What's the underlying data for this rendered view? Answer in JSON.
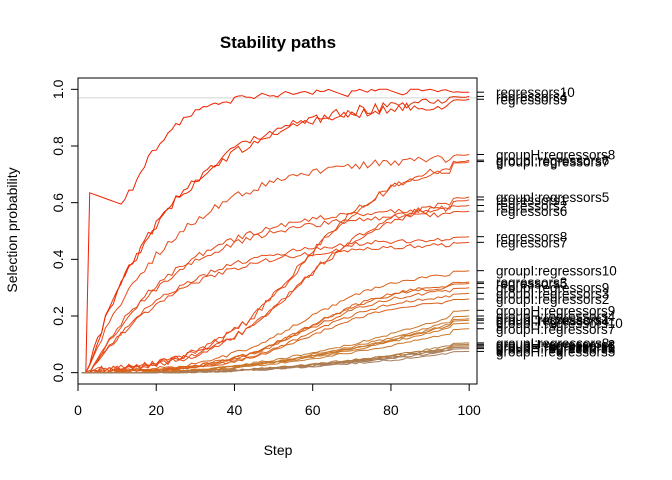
{
  "chart_data": {
    "type": "line",
    "title": "Stability paths",
    "xlabel": "Step",
    "ylabel": "Selection probability",
    "xlim": [
      0,
      102
    ],
    "ylim": [
      -0.04,
      1.04
    ],
    "xticks": [
      0,
      20,
      40,
      60,
      80,
      100
    ],
    "yticks": [
      0.0,
      0.2,
      0.4,
      0.6,
      0.8,
      1.0
    ],
    "threshold": 0.97,
    "grid": false,
    "series": [
      {
        "name": "regressors10",
        "color": "#f01f00",
        "end": 0.99,
        "start": 2,
        "shape": "fast"
      },
      {
        "name": "regressors4",
        "color": "#ea2a00",
        "end": 0.975,
        "start": 2,
        "shape": "medium"
      },
      {
        "name": "regressors9",
        "color": "#ea2a00",
        "end": 0.965,
        "start": 2,
        "shape": "medium"
      },
      {
        "name": "groupH:regressors8",
        "color": "#e64a18",
        "end": 0.77,
        "start": 2,
        "shape": "medium"
      },
      {
        "name": "groupI:regressors6",
        "color": "#e64a18",
        "end": 0.75,
        "start": 4,
        "shape": "sig"
      },
      {
        "name": "groupI:regressors7",
        "color": "#e64a18",
        "end": 0.745,
        "start": 4,
        "shape": "sig"
      },
      {
        "name": "groupI:regressors5",
        "color": "#e64a18",
        "end": 0.62,
        "start": 3,
        "shape": "sig"
      },
      {
        "name": "regressors1",
        "color": "#e64a18",
        "end": 0.61,
        "start": 3,
        "shape": "sig"
      },
      {
        "name": "regressors2",
        "color": "#e64a18",
        "end": 0.59,
        "start": 3,
        "shape": "medium"
      },
      {
        "name": "regressors6",
        "color": "#e64a18",
        "end": 0.57,
        "start": 3,
        "shape": "medium"
      },
      {
        "name": "regressors8",
        "color": "#e64a18",
        "end": 0.48,
        "start": 3,
        "shape": "medium"
      },
      {
        "name": "regressors7",
        "color": "#e64a18",
        "end": 0.46,
        "start": 3,
        "shape": "medium"
      },
      {
        "name": "groupI:regressors10",
        "color": "#d9611a",
        "end": 0.36,
        "start": 5,
        "shape": "sig"
      },
      {
        "name": "regressors3",
        "color": "#d9611a",
        "end": 0.32,
        "start": 8,
        "shape": "sig"
      },
      {
        "name": "regressors5",
        "color": "#d9611a",
        "end": 0.315,
        "start": 8,
        "shape": "sig"
      },
      {
        "name": "groupI:regressors9",
        "color": "#d9611a",
        "end": 0.3,
        "start": 8,
        "shape": "sig"
      },
      {
        "name": "groupI:regressors3",
        "color": "#d9611a",
        "end": 0.28,
        "start": 10,
        "shape": "sig"
      },
      {
        "name": "groupI:regressors2",
        "color": "#d9611a",
        "end": 0.26,
        "start": 10,
        "shape": "sig"
      },
      {
        "name": "groupH:regressors9",
        "color": "#c8762a",
        "end": 0.22,
        "start": 15,
        "shape": "late"
      },
      {
        "name": "groupH:regressors4",
        "color": "#c8762a",
        "end": 0.2,
        "start": 15,
        "shape": "late"
      },
      {
        "name": "groupI:regressors1",
        "color": "#c8762a",
        "end": 0.19,
        "start": 15,
        "shape": "late"
      },
      {
        "name": "groupI:regressors4",
        "color": "#c8762a",
        "end": 0.185,
        "start": 15,
        "shape": "late"
      },
      {
        "name": "groupH:regressors10",
        "color": "#c8762a",
        "end": 0.175,
        "start": 15,
        "shape": "late"
      },
      {
        "name": "groupH:regressors7",
        "color": "#c8762a",
        "end": 0.155,
        "start": 15,
        "shape": "late"
      },
      {
        "name": "groupI:regressors8",
        "color": "#b07a40",
        "end": 0.105,
        "start": 20,
        "shape": "late"
      },
      {
        "name": "groupH:regressors2",
        "color": "#b07a40",
        "end": 0.1,
        "start": 20,
        "shape": "late"
      },
      {
        "name": "groupH:regressors6",
        "color": "#b07a40",
        "end": 0.095,
        "start": 20,
        "shape": "late"
      },
      {
        "name": "groupH:regressors1",
        "color": "#a87c5a",
        "end": 0.09,
        "start": 20,
        "shape": "late"
      },
      {
        "name": "groupH:regressors3",
        "color": "#a87c5a",
        "end": 0.085,
        "start": 20,
        "shape": "late"
      },
      {
        "name": "groupH:regressors5",
        "color": "#a87c5a",
        "end": 0.075,
        "start": 20,
        "shape": "late"
      }
    ]
  }
}
